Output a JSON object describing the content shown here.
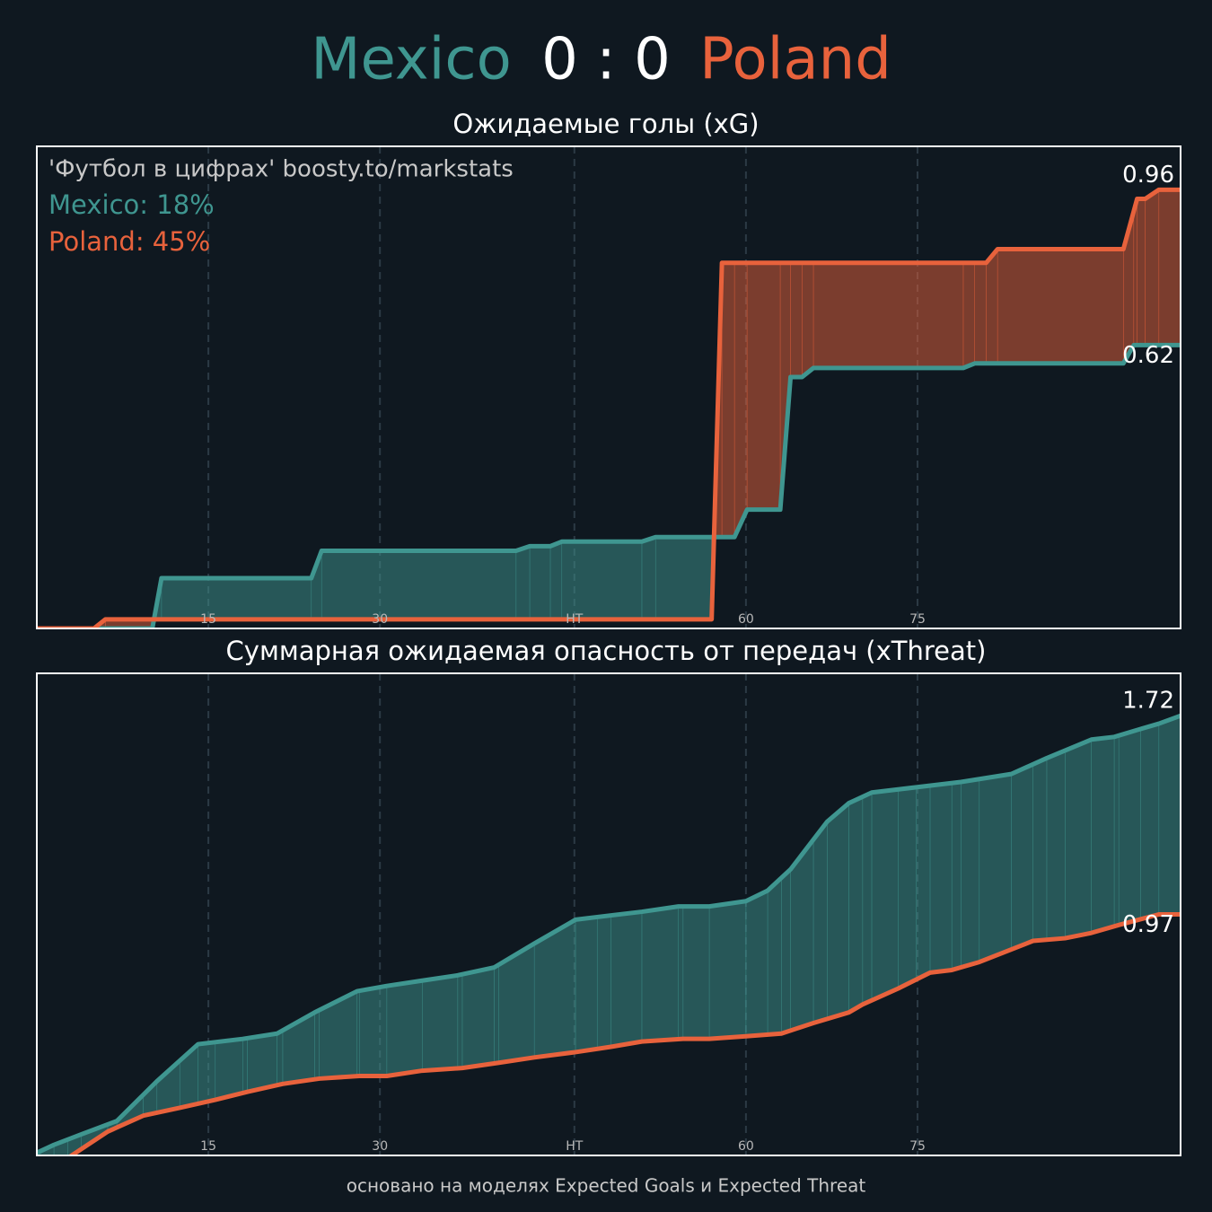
{
  "header": {
    "home": "Mexico",
    "score": "0 : 0",
    "away": "Poland",
    "home_color": "#3f9690",
    "away_color": "#e8623c"
  },
  "footer": "основано на моделях Expected Goals и Expected Threat",
  "chart_data": [
    {
      "type": "line",
      "title": "Ожидаемые голы (xG)",
      "annotations": [
        "'Футбол в цифрах' boosty.to/markstats",
        "Mexico: 18%",
        "Poland: 45%"
      ],
      "xlim": [
        0,
        100
      ],
      "xticks": [
        15,
        30,
        {
          "value": 47,
          "label": "HT"
        },
        {
          "value": 62,
          "label": "60"
        },
        {
          "value": 77,
          "label": "75"
        }
      ],
      "ylim": [
        0,
        1.055
      ],
      "grid": true,
      "series": [
        {
          "name": "Mexico",
          "color": "#3f9690",
          "x": [
            0,
            5.4,
            10.1,
            10.9,
            24.0,
            24.9,
            41.9,
            43.1,
            44.9,
            45.9,
            52.9,
            54.1,
            61.0,
            62.1,
            65.0,
            65.9,
            66.9,
            67.9,
            81.0,
            82.0,
            95.0,
            95.9,
            100
          ],
          "values": [
            0,
            0,
            0,
            0.11,
            0.11,
            0.17,
            0.17,
            0.18,
            0.18,
            0.19,
            0.19,
            0.2,
            0.2,
            0.26,
            0.26,
            0.55,
            0.55,
            0.57,
            0.57,
            0.58,
            0.58,
            0.62,
            0.62
          ]
        },
        {
          "name": "Poland",
          "color": "#e8623c",
          "x": [
            0,
            5,
            6,
            59,
            59.9,
            83,
            84,
            95,
            96.2,
            96.9,
            98.1,
            100
          ],
          "values": [
            0,
            0,
            0.02,
            0.02,
            0.8,
            0.8,
            0.83,
            0.83,
            0.94,
            0.94,
            0.96,
            0.96
          ]
        }
      ]
    },
    {
      "type": "line",
      "title": "Суммарная ожидаемая опасность от передач (xThreat)",
      "xlim": [
        0,
        100
      ],
      "xticks": [
        15,
        30,
        {
          "value": 47,
          "label": "HT"
        },
        {
          "value": 62,
          "label": "60"
        },
        {
          "value": 77,
          "label": "75"
        }
      ],
      "ylim": [
        0.06,
        1.88
      ],
      "grid": true,
      "series": [
        {
          "name": "Mexico",
          "color": "#3f9690",
          "x": [
            0,
            1.5,
            3.9,
            7.0,
            10.5,
            14.1,
            18.0,
            21.0,
            24.3,
            28.0,
            30.6,
            33.7,
            36.8,
            40.0,
            43.5,
            47.1,
            49.0,
            52.9,
            56.1,
            58.8,
            62.0,
            63.9,
            65.9,
            69.1,
            71.0,
            73.0,
            76.9,
            80.8,
            85.2,
            88.3,
            92.2,
            94.2,
            96.5,
            98.1,
            100
          ],
          "values": [
            0.07,
            0.1,
            0.14,
            0.19,
            0.34,
            0.48,
            0.5,
            0.52,
            0.6,
            0.68,
            0.7,
            0.72,
            0.74,
            0.77,
            0.86,
            0.95,
            0.96,
            0.98,
            1.0,
            1.0,
            1.02,
            1.06,
            1.14,
            1.32,
            1.39,
            1.43,
            1.45,
            1.47,
            1.5,
            1.56,
            1.63,
            1.64,
            1.67,
            1.69,
            1.72
          ]
        },
        {
          "name": "Poland",
          "color": "#e8623c",
          "x": [
            0.3,
            2.7,
            6.2,
            9.3,
            12.5,
            15.6,
            18.4,
            21.5,
            24.7,
            28.2,
            30.6,
            33.7,
            37.2,
            40.4,
            43.5,
            47.1,
            50.2,
            52.9,
            56.5,
            58.8,
            62.0,
            65.1,
            67.9,
            71.0,
            72.2,
            75.3,
            78.1,
            80.0,
            82.4,
            87.1,
            89.9,
            92.2,
            94.6,
            98.1,
            100
          ],
          "values": [
            0,
            0.05,
            0.15,
            0.21,
            0.24,
            0.27,
            0.3,
            0.33,
            0.35,
            0.36,
            0.36,
            0.38,
            0.39,
            0.41,
            0.43,
            0.45,
            0.47,
            0.49,
            0.5,
            0.5,
            0.51,
            0.52,
            0.56,
            0.6,
            0.63,
            0.69,
            0.75,
            0.76,
            0.79,
            0.87,
            0.88,
            0.9,
            0.93,
            0.97,
            0.97
          ]
        }
      ]
    }
  ]
}
